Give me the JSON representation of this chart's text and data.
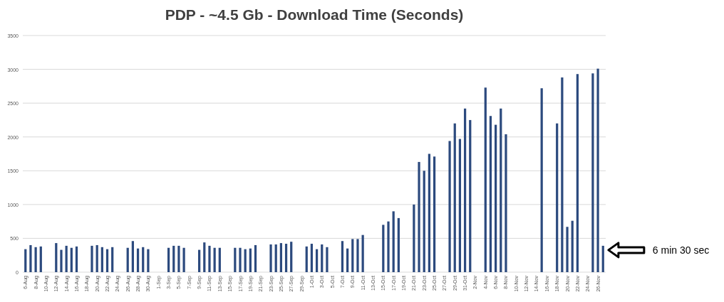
{
  "chart_data": {
    "type": "bar",
    "title": "PDP - ~4.5 Gb - Download Time (Seconds)",
    "categories": [
      "6-Aug",
      null,
      "8-Aug",
      null,
      "10-Aug",
      null,
      "12-Aug",
      null,
      "14-Aug",
      null,
      "16-Aug",
      null,
      "18-Aug",
      null,
      "20-Aug",
      null,
      "22-Aug",
      null,
      "24-Aug",
      null,
      "26-Aug",
      null,
      "28-Aug",
      null,
      "30-Aug",
      null,
      "1-Sep",
      null,
      "3-Sep",
      null,
      "5-Sep",
      null,
      "7-Sep",
      null,
      "9-Sep",
      null,
      "11-Sep",
      null,
      "13-Sep",
      null,
      "15-Sep",
      null,
      "17-Sep",
      null,
      "19-Sep",
      null,
      "21-Sep",
      null,
      "23-Sep",
      null,
      "25-Sep",
      null,
      "27-Sep",
      null,
      "29-Sep",
      null,
      "1-Oct",
      null,
      "3-Oct",
      null,
      "5-Oct",
      null,
      "7-Oct",
      null,
      "9-Oct",
      null,
      "11-Oct",
      null,
      "13-Oct",
      null,
      "15-Oct",
      null,
      "17-Oct",
      null,
      "19-Oct",
      null,
      "21-Oct",
      null,
      "23-Oct",
      null,
      "25-Oct",
      null,
      "27-Oct",
      null,
      "29-Oct",
      null,
      "31-Oct",
      null,
      "2-Nov",
      null,
      "4-Nov",
      null,
      "6-Nov",
      null,
      "8-Nov",
      null,
      "10-Nov",
      null,
      "12-Nov",
      null,
      "14-Nov",
      null,
      "16-Nov",
      null,
      "18-Nov",
      null,
      "20-Nov",
      null,
      "22-Nov",
      null,
      "24-Nov",
      null,
      "26-Nov",
      null
    ],
    "values": [
      340,
      400,
      370,
      380,
      null,
      null,
      430,
      330,
      390,
      360,
      380,
      null,
      null,
      390,
      400,
      370,
      340,
      370,
      null,
      null,
      360,
      460,
      350,
      370,
      340,
      null,
      null,
      null,
      360,
      390,
      390,
      360,
      null,
      null,
      330,
      440,
      390,
      360,
      360,
      null,
      null,
      360,
      360,
      340,
      350,
      400,
      null,
      null,
      410,
      410,
      430,
      420,
      450,
      null,
      null,
      380,
      420,
      340,
      410,
      370,
      null,
      null,
      460,
      350,
      490,
      490,
      550,
      null,
      null,
      null,
      700,
      750,
      900,
      800,
      null,
      null,
      1000,
      1630,
      1500,
      1750,
      1710,
      null,
      null,
      1940,
      2200,
      1970,
      2420,
      2250,
      null,
      null,
      2730,
      2310,
      2180,
      2420,
      2040,
      null,
      null,
      null,
      null,
      null,
      null,
      2720,
      null,
      null,
      2200,
      2880,
      670,
      760,
      2930,
      null,
      null,
      2940,
      3010,
      390
    ],
    "color": "#2c4a7e",
    "ylim": [
      0,
      3500
    ],
    "yticks": [
      0,
      500,
      1000,
      1500,
      2000,
      2500,
      3000,
      3500
    ],
    "grid": "y",
    "annotations": [
      "6 min 30 sec"
    ]
  }
}
